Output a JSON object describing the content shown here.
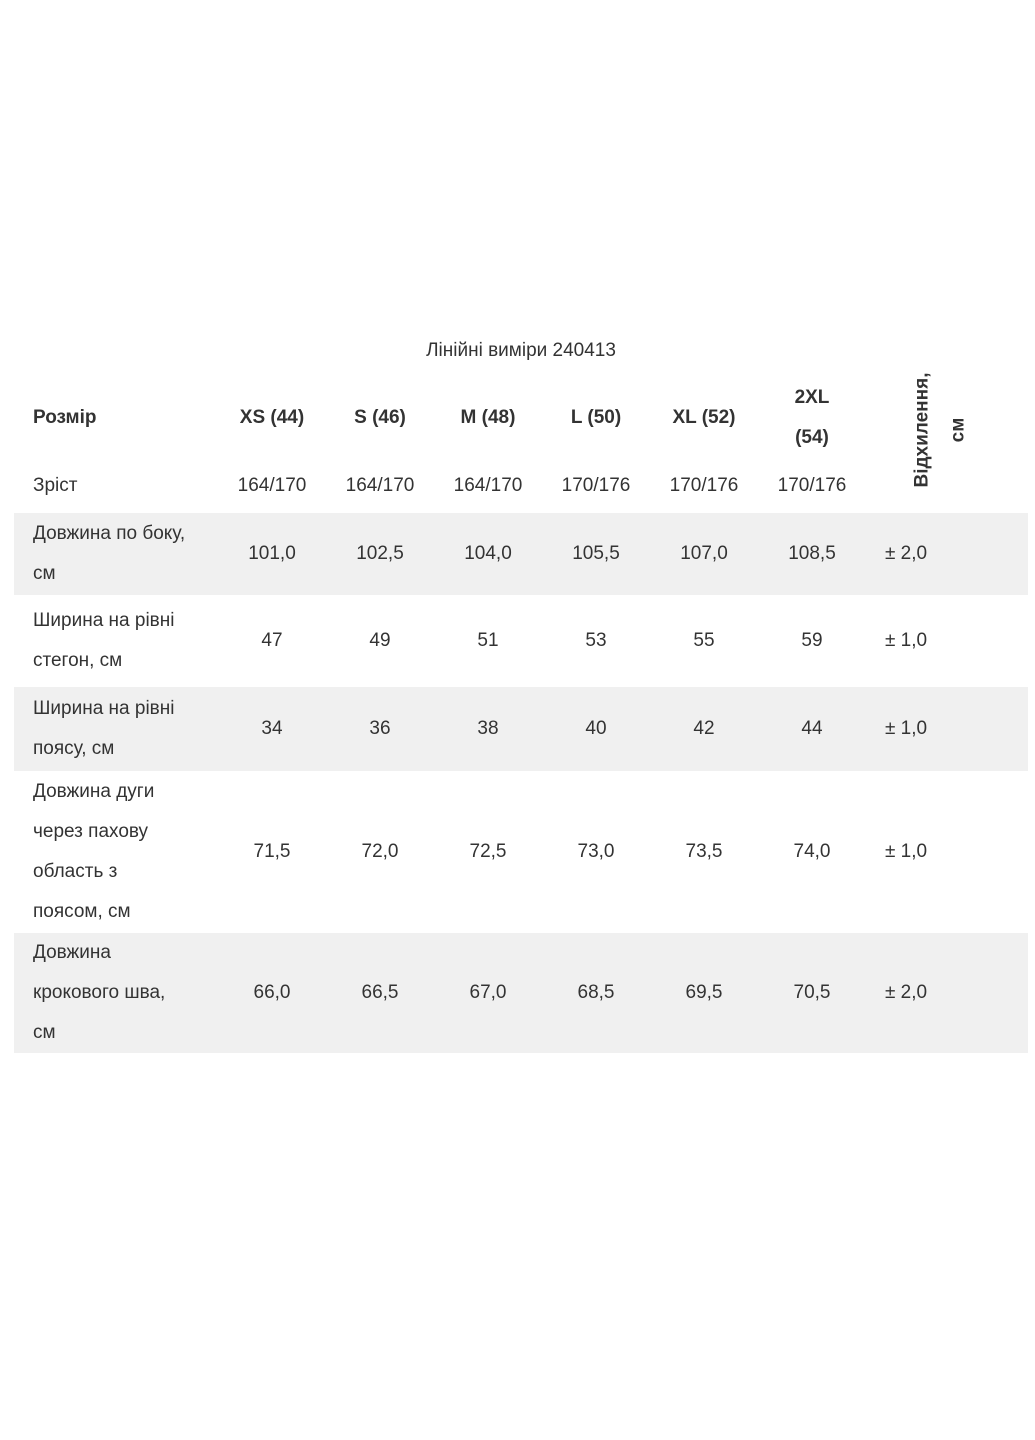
{
  "title": "Лінійні виміри 240413",
  "colors": {
    "row_shade": "#f0f0f0",
    "text": "#333333"
  },
  "table": {
    "header": {
      "size_label": "Розмір",
      "sizes": [
        "XS (44)",
        "S (46)",
        "M (48)",
        "L (50)",
        "XL (52)",
        "2XL\n(54)"
      ],
      "deviation_label": "Відхилення,\nсм"
    },
    "rows": [
      {
        "label": "Зріст",
        "values": [
          "164/170",
          "164/170",
          "164/170",
          "170/176",
          "170/176",
          "170/176"
        ],
        "deviation": ""
      },
      {
        "label": "Довжина по боку,\nсм",
        "values": [
          "101,0",
          "102,5",
          "104,0",
          "105,5",
          "107,0",
          "108,5"
        ],
        "deviation": "± 2,0"
      },
      {
        "label": "Ширина на рівні\nстегон, см",
        "values": [
          "47",
          "49",
          "51",
          "53",
          "55",
          "59"
        ],
        "deviation": "± 1,0"
      },
      {
        "label": "Ширина на рівні\nпоясу, см",
        "values": [
          "34",
          "36",
          "38",
          "40",
          "42",
          "44"
        ],
        "deviation": "± 1,0"
      },
      {
        "label": "Довжина дуги\nчерез пахову\nобласть з\nпоясом, см",
        "values": [
          "71,5",
          "72,0",
          "72,5",
          "73,0",
          "73,5",
          "74,0"
        ],
        "deviation": "± 1,0"
      },
      {
        "label": "Довжина\nкрокового шва,\nсм",
        "values": [
          "66,0",
          "66,5",
          "67,0",
          "68,5",
          "69,5",
          "70,5"
        ],
        "deviation": "± 2,0"
      }
    ]
  }
}
